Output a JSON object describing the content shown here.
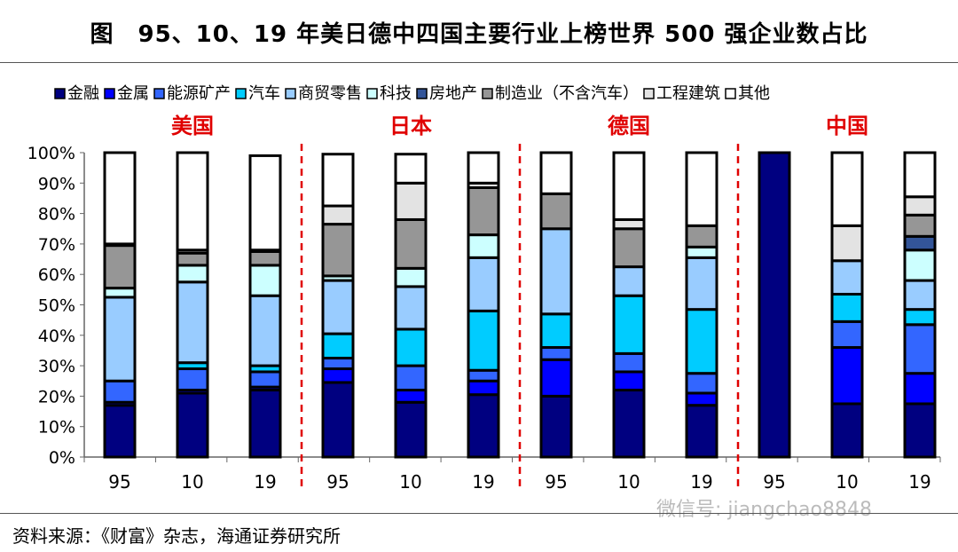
{
  "title": "图　95、10、19 年美日德中四国主要行业上榜世界 500 强企业数占比",
  "source": "资料来源：《财富》杂志，海通证券研究所",
  "watermark": "微信号: jiangchao8848",
  "chart_data": {
    "type": "bar",
    "stacked": true,
    "title": "图　95、10、19 年美日德中四国主要行业上榜世界 500 强企业数占比",
    "ylim": [
      0,
      100
    ],
    "yticks": [
      "0%",
      "10%",
      "20%",
      "30%",
      "40%",
      "50%",
      "60%",
      "70%",
      "80%",
      "90%",
      "100%"
    ],
    "groups": [
      "美国",
      "日本",
      "德国",
      "中国"
    ],
    "group_color": "#e00000",
    "categories": [
      "95",
      "10",
      "19",
      "95",
      "10",
      "19",
      "95",
      "10",
      "19",
      "95",
      "10",
      "19"
    ],
    "legend_placement": "top",
    "series": [
      {
        "name": "金融",
        "color": "#000080",
        "values": [
          17,
          21,
          22,
          24.5,
          18,
          20.5,
          20,
          22,
          17,
          100,
          17.5,
          17.5
        ]
      },
      {
        "name": "金属",
        "color": "#0000ff",
        "values": [
          1,
          1,
          1,
          4.5,
          4,
          4.5,
          12,
          6,
          4,
          0,
          18.5,
          10
        ]
      },
      {
        "name": "能源矿产",
        "color": "#3366ff",
        "values": [
          7,
          7,
          5,
          3.5,
          8,
          3.5,
          4,
          6,
          6.5,
          0,
          8.5,
          16
        ]
      },
      {
        "name": "汽车",
        "color": "#00ccff",
        "values": [
          0,
          2,
          2,
          8,
          12,
          19.5,
          11,
          19,
          21,
          0,
          9,
          5
        ]
      },
      {
        "name": "商贸零售",
        "color": "#99ccff",
        "values": [
          27.5,
          26.5,
          23,
          17.5,
          14,
          17.5,
          28,
          9.5,
          17,
          0,
          11,
          9.5
        ]
      },
      {
        "name": "科技",
        "color": "#ccffff",
        "values": [
          3,
          5.5,
          10,
          1.5,
          6,
          7.5,
          0,
          0,
          3.5,
          0,
          0,
          10
        ]
      },
      {
        "name": "房地产",
        "color": "#335599",
        "values": [
          0,
          0,
          0,
          0,
          0,
          0,
          0,
          0,
          0,
          0,
          0,
          4.5
        ]
      },
      {
        "name": "制造业（不含汽车）",
        "color": "#969696",
        "values": [
          14,
          4,
          4.5,
          17,
          16,
          15.5,
          11.5,
          12.5,
          7,
          0,
          0,
          7
        ]
      },
      {
        "name": "工程建筑",
        "color": "#e3e3e3",
        "values": [
          0.5,
          1,
          0.5,
          6,
          12,
          1.5,
          0,
          3,
          0,
          0,
          11.5,
          6
        ]
      },
      {
        "name": "其他",
        "color": "#ffffff",
        "values": [
          30,
          32,
          31,
          17,
          9.5,
          10,
          13.5,
          22,
          24,
          0,
          24,
          14.5
        ]
      }
    ]
  }
}
